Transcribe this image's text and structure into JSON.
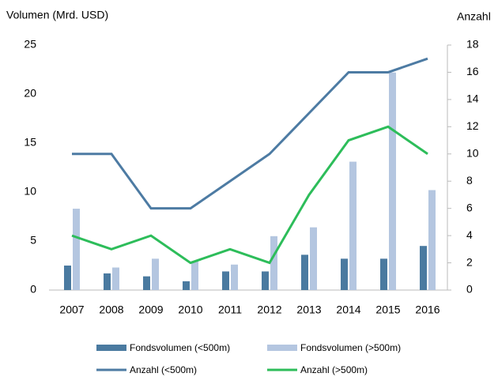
{
  "chart_data": {
    "type": "bar",
    "y_label": "Volumen (Mrd. USD)",
    "y2_label": "Anzahl",
    "categories": [
      "2007",
      "2008",
      "2009",
      "2010",
      "2011",
      "2012",
      "2013",
      "2014",
      "2015",
      "2016"
    ],
    "series": [
      {
        "name": "Fondsvolumen (<500m)",
        "type": "bar",
        "color": "#4a7aa0",
        "values": [
          2.5,
          1.7,
          1.4,
          0.9,
          1.9,
          1.9,
          3.6,
          3.2,
          3.2,
          4.5
        ]
      },
      {
        "name": "Fondsvolumen (>500m)",
        "type": "bar",
        "color": "#b4c6e0",
        "values": [
          8.3,
          2.3,
          3.2,
          2.9,
          2.6,
          5.5,
          6.4,
          13.1,
          22.2,
          10.2
        ]
      },
      {
        "name": "Anzahl (<500m)",
        "type": "line",
        "axis": "y2",
        "color": "#4d7ba3",
        "values": [
          10,
          10,
          6,
          6,
          8,
          10,
          13,
          16,
          16,
          17
        ]
      },
      {
        "name": "Anzahl (>500m)",
        "type": "line",
        "axis": "y2",
        "color": "#2dbd5a",
        "values": [
          4,
          3,
          4,
          2,
          3,
          2,
          7,
          11,
          12,
          10
        ]
      }
    ],
    "ylim": [
      0,
      25
    ],
    "yticks": [
      0,
      5,
      10,
      15,
      20,
      25
    ],
    "y2lim": [
      0,
      18
    ],
    "y2ticks": [
      0,
      2,
      4,
      6,
      8,
      10,
      12,
      14,
      16,
      18
    ],
    "grid": false
  }
}
